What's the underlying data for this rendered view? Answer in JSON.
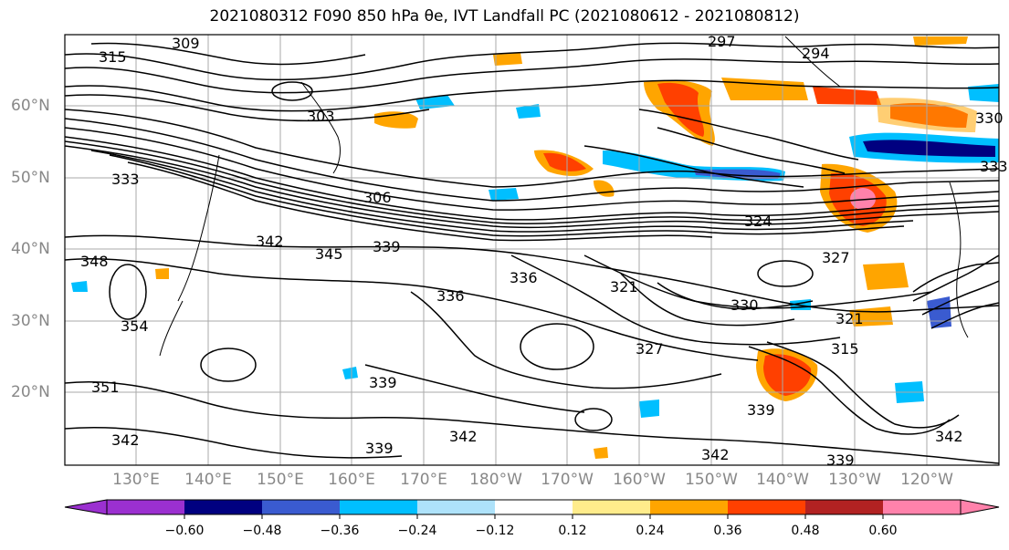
{
  "title": "2021080312 F090 850 hPa θe, IVT Landfall PC (2021080612 - 2021080812)",
  "lat_labels": [
    "60°N",
    "50°N",
    "40°N",
    "30°N",
    "20°N"
  ],
  "lon_labels": [
    "130°E",
    "140°E",
    "150°E",
    "160°E",
    "170°E",
    "180°W",
    "170°W",
    "160°W",
    "150°W",
    "140°W",
    "130°W",
    "120°W"
  ],
  "colorbar": {
    "ticks": [
      "−0.60",
      "−0.48",
      "−0.36",
      "−0.24",
      "−0.12",
      "0.12",
      "0.24",
      "0.36",
      "0.48",
      "0.60"
    ],
    "colors": [
      "#9b30d0",
      "#000080",
      "#3a5bd0",
      "#00bfff",
      "#aee2fa",
      "#ffffff",
      "#ffec8b",
      "#ffa500",
      "#ff4000",
      "#b22222",
      "#ff82ab"
    ]
  },
  "contour_labels": [
    {
      "text": "309"
    },
    {
      "text": "315"
    },
    {
      "text": "303"
    },
    {
      "text": "297"
    },
    {
      "text": "294"
    },
    {
      "text": "333"
    },
    {
      "text": "306"
    },
    {
      "text": "342"
    },
    {
      "text": "339"
    },
    {
      "text": "345"
    },
    {
      "text": "336"
    },
    {
      "text": "327"
    },
    {
      "text": "321"
    },
    {
      "text": "330"
    },
    {
      "text": "348"
    },
    {
      "text": "354"
    },
    {
      "text": "351"
    },
    {
      "text": "342"
    },
    {
      "text": "339"
    },
    {
      "text": "339"
    },
    {
      "text": "342"
    },
    {
      "text": "342"
    },
    {
      "text": "339"
    },
    {
      "text": "315"
    },
    {
      "text": "321"
    },
    {
      "text": "327"
    },
    {
      "text": "324"
    },
    {
      "text": "333"
    },
    {
      "text": "342"
    },
    {
      "text": "339"
    },
    {
      "text": "336"
    },
    {
      "text": "330"
    }
  ]
}
